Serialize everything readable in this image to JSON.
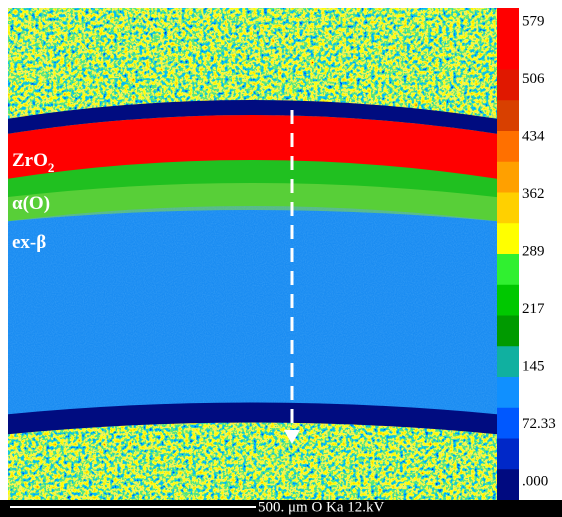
{
  "image_labels": [
    {
      "text": "ZrO",
      "subscript": "2"
    },
    {
      "text": "α(O)"
    },
    {
      "text": "ex-β"
    }
  ],
  "colorbar": {
    "labels": [
      "579",
      "506",
      "434",
      "362",
      "289",
      "217",
      "145",
      "72.33",
      ".000"
    ]
  },
  "scale_bar": {
    "text": "500. μm  O  Ka  12.kV"
  }
}
